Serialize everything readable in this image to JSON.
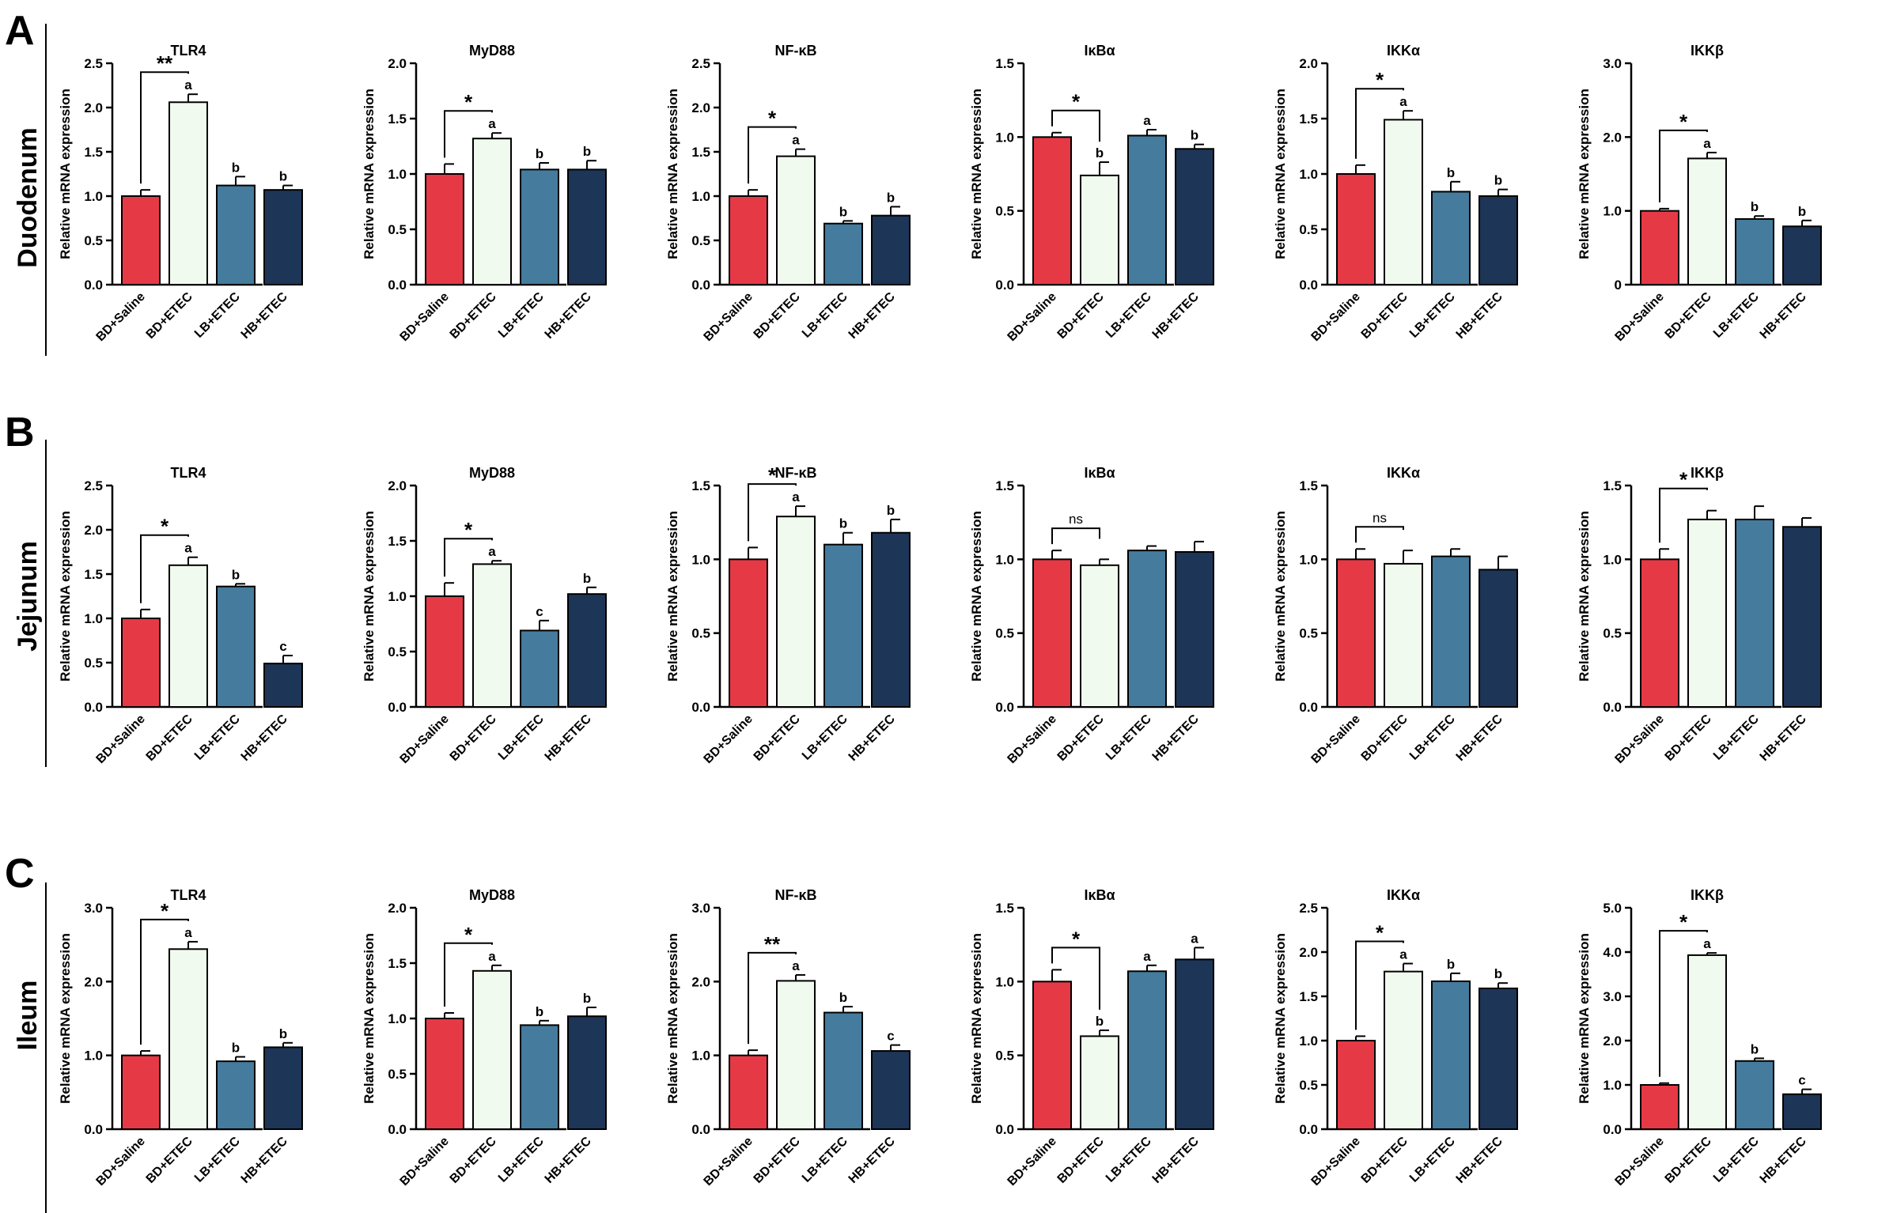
{
  "colors": {
    "groups": [
      "#E63946",
      "#F1FAEE",
      "#457B9D",
      "#1D3557"
    ],
    "bar_edge": "#000000",
    "divider": "#000000"
  },
  "chart_data": {
    "type": "bar",
    "categories": [
      "BD+Saline",
      "BD+ETEC",
      "LB+ETEC",
      "HB+ETEC"
    ],
    "ylabel": "Relative mRNA expression",
    "panels": [
      {
        "label": "A",
        "tissue": "Duodenum",
        "charts": [
          {
            "title": "TLR4",
            "ylim": [
              0,
              2.5
            ],
            "ticks": [
              "0.0",
              "0.5",
              "1.0",
              "1.5",
              "2.0",
              "2.5"
            ],
            "values": [
              1.0,
              2.06,
              1.12,
              1.07
            ],
            "errors": [
              0.07,
              0.09,
              0.1,
              0.05
            ],
            "letters": [
              "",
              "a",
              "b",
              "b"
            ],
            "sig": "**"
          },
          {
            "title": "MyD88",
            "ylim": [
              0,
              2.0
            ],
            "ticks": [
              "0.0",
              "0.5",
              "1.0",
              "1.5",
              "2.0"
            ],
            "values": [
              1.0,
              1.32,
              1.04,
              1.04
            ],
            "errors": [
              0.09,
              0.05,
              0.06,
              0.08
            ],
            "letters": [
              "",
              "a",
              "b",
              "b"
            ],
            "sig": "*"
          },
          {
            "title": "NF-κB",
            "ylim": [
              0,
              2.5
            ],
            "ticks": [
              "0.0",
              "0.5",
              "1.0",
              "1.5",
              "2.0",
              "2.5"
            ],
            "values": [
              1.0,
              1.45,
              0.69,
              0.78
            ],
            "errors": [
              0.07,
              0.08,
              0.03,
              0.1
            ],
            "letters": [
              "",
              "a",
              "b",
              "b"
            ],
            "sig": "*"
          },
          {
            "title": "IκBα",
            "ylim": [
              0,
              1.5
            ],
            "ticks": [
              "0.0",
              "0.5",
              "1.0",
              "1.5"
            ],
            "values": [
              1.0,
              0.74,
              1.01,
              0.92
            ],
            "errors": [
              0.03,
              0.09,
              0.04,
              0.03
            ],
            "letters": [
              "",
              "b",
              "a",
              "b"
            ],
            "sig": "*"
          },
          {
            "title": "IKKα",
            "ylim": [
              0,
              2.0
            ],
            "ticks": [
              "0.0",
              "0.5",
              "1.0",
              "1.5",
              "2.0"
            ],
            "values": [
              1.0,
              1.49,
              0.84,
              0.8
            ],
            "errors": [
              0.08,
              0.08,
              0.09,
              0.06
            ],
            "letters": [
              "",
              "a",
              "b",
              "b"
            ],
            "sig": "*"
          },
          {
            "title": "IKKβ",
            "ylim": [
              0,
              3.0
            ],
            "ticks": [
              "0",
              "1.0",
              "2.0",
              "3.0"
            ],
            "values": [
              1.0,
              1.71,
              0.89,
              0.79
            ],
            "errors": [
              0.03,
              0.08,
              0.04,
              0.08
            ],
            "letters": [
              "",
              "a",
              "b",
              "b"
            ],
            "sig": "*"
          }
        ]
      },
      {
        "label": "B",
        "tissue": "Jejunum",
        "charts": [
          {
            "title": "TLR4",
            "ylim": [
              0,
              2.5
            ],
            "ticks": [
              "0.0",
              "0.5",
              "1.0",
              "1.5",
              "2.0",
              "2.5"
            ],
            "values": [
              1.0,
              1.6,
              1.36,
              0.49
            ],
            "errors": [
              0.1,
              0.09,
              0.03,
              0.09
            ],
            "letters": [
              "",
              "a",
              "b",
              "c"
            ],
            "sig": "*"
          },
          {
            "title": "MyD88",
            "ylim": [
              0,
              2.0
            ],
            "ticks": [
              "0.0",
              "0.5",
              "1.0",
              "1.5",
              "2.0"
            ],
            "values": [
              1.0,
              1.29,
              0.69,
              1.02
            ],
            "errors": [
              0.12,
              0.03,
              0.09,
              0.06
            ],
            "letters": [
              "",
              "a",
              "c",
              "b"
            ],
            "sig": "*"
          },
          {
            "title": "NF-κB",
            "ylim": [
              0,
              1.5
            ],
            "ticks": [
              "0.0",
              "0.5",
              "1.0",
              "1.5"
            ],
            "values": [
              1.0,
              1.29,
              1.1,
              1.18
            ],
            "errors": [
              0.08,
              0.07,
              0.08,
              0.09
            ],
            "letters": [
              "",
              "a",
              "b",
              "b"
            ],
            "sig": "*"
          },
          {
            "title": "IκBα",
            "ylim": [
              0,
              1.5
            ],
            "ticks": [
              "0.0",
              "0.5",
              "1.0",
              "1.5"
            ],
            "values": [
              1.0,
              0.96,
              1.06,
              1.05
            ],
            "errors": [
              0.06,
              0.04,
              0.03,
              0.07
            ],
            "letters": [
              "",
              "",
              "",
              ""
            ],
            "sig": "ns"
          },
          {
            "title": "IKKα",
            "ylim": [
              0,
              1.5
            ],
            "ticks": [
              "0.0",
              "0.5",
              "1.0",
              "1.5"
            ],
            "values": [
              1.0,
              0.97,
              1.02,
              0.93
            ],
            "errors": [
              0.07,
              0.09,
              0.05,
              0.09
            ],
            "letters": [
              "",
              "",
              "",
              ""
            ],
            "sig": "ns"
          },
          {
            "title": "IKKβ",
            "ylim": [
              0,
              1.5
            ],
            "ticks": [
              "0.0",
              "0.5",
              "1.0",
              "1.5"
            ],
            "values": [
              1.0,
              1.27,
              1.27,
              1.22
            ],
            "errors": [
              0.07,
              0.06,
              0.09,
              0.06
            ],
            "letters": [
              "",
              "",
              "",
              ""
            ],
            "sig": "*"
          }
        ]
      },
      {
        "label": "C",
        "tissue": "Ileum",
        "charts": [
          {
            "title": "TLR4",
            "ylim": [
              0,
              3.0
            ],
            "ticks": [
              "0.0",
              "1.0",
              "2.0",
              "3.0"
            ],
            "values": [
              1.0,
              2.44,
              0.92,
              1.11
            ],
            "errors": [
              0.06,
              0.1,
              0.06,
              0.06
            ],
            "letters": [
              "",
              "a",
              "b",
              "b"
            ],
            "sig": "*"
          },
          {
            "title": "MyD88",
            "ylim": [
              0,
              2.0
            ],
            "ticks": [
              "0.0",
              "0.5",
              "1.0",
              "1.5",
              "2.0"
            ],
            "values": [
              1.0,
              1.43,
              0.94,
              1.02
            ],
            "errors": [
              0.05,
              0.05,
              0.04,
              0.08
            ],
            "letters": [
              "",
              "a",
              "b",
              "b"
            ],
            "sig": "*"
          },
          {
            "title": "NF-κB",
            "ylim": [
              0,
              3.0
            ],
            "ticks": [
              "0.0",
              "1.0",
              "2.0",
              "3.0"
            ],
            "values": [
              1.0,
              2.01,
              1.58,
              1.06
            ],
            "errors": [
              0.07,
              0.08,
              0.08,
              0.08
            ],
            "letters": [
              "",
              "a",
              "b",
              "c"
            ],
            "sig": "**"
          },
          {
            "title": "IκBα",
            "ylim": [
              0,
              1.5
            ],
            "ticks": [
              "0.0",
              "0.5",
              "1.0",
              "1.5"
            ],
            "values": [
              1.0,
              0.63,
              1.07,
              1.15
            ],
            "errors": [
              0.08,
              0.04,
              0.04,
              0.08
            ],
            "letters": [
              "",
              "b",
              "a",
              "a"
            ],
            "sig": "*"
          },
          {
            "title": "IKKα",
            "ylim": [
              0,
              2.5
            ],
            "ticks": [
              "0.0",
              "0.5",
              "1.0",
              "1.5",
              "2.0",
              "2.5"
            ],
            "values": [
              1.0,
              1.78,
              1.67,
              1.59
            ],
            "errors": [
              0.05,
              0.09,
              0.09,
              0.06
            ],
            "letters": [
              "",
              "a",
              "b",
              "b"
            ],
            "sig": "*"
          },
          {
            "title": "IKKβ",
            "ylim": [
              0,
              5.0
            ],
            "ticks": [
              "0.0",
              "1.0",
              "2.0",
              "3.0",
              "4.0",
              "5.0"
            ],
            "values": [
              1.0,
              3.93,
              1.54,
              0.79
            ],
            "errors": [
              0.04,
              0.05,
              0.06,
              0.11
            ],
            "letters": [
              "",
              "a",
              "b",
              "c"
            ],
            "sig": "*"
          }
        ]
      }
    ]
  }
}
